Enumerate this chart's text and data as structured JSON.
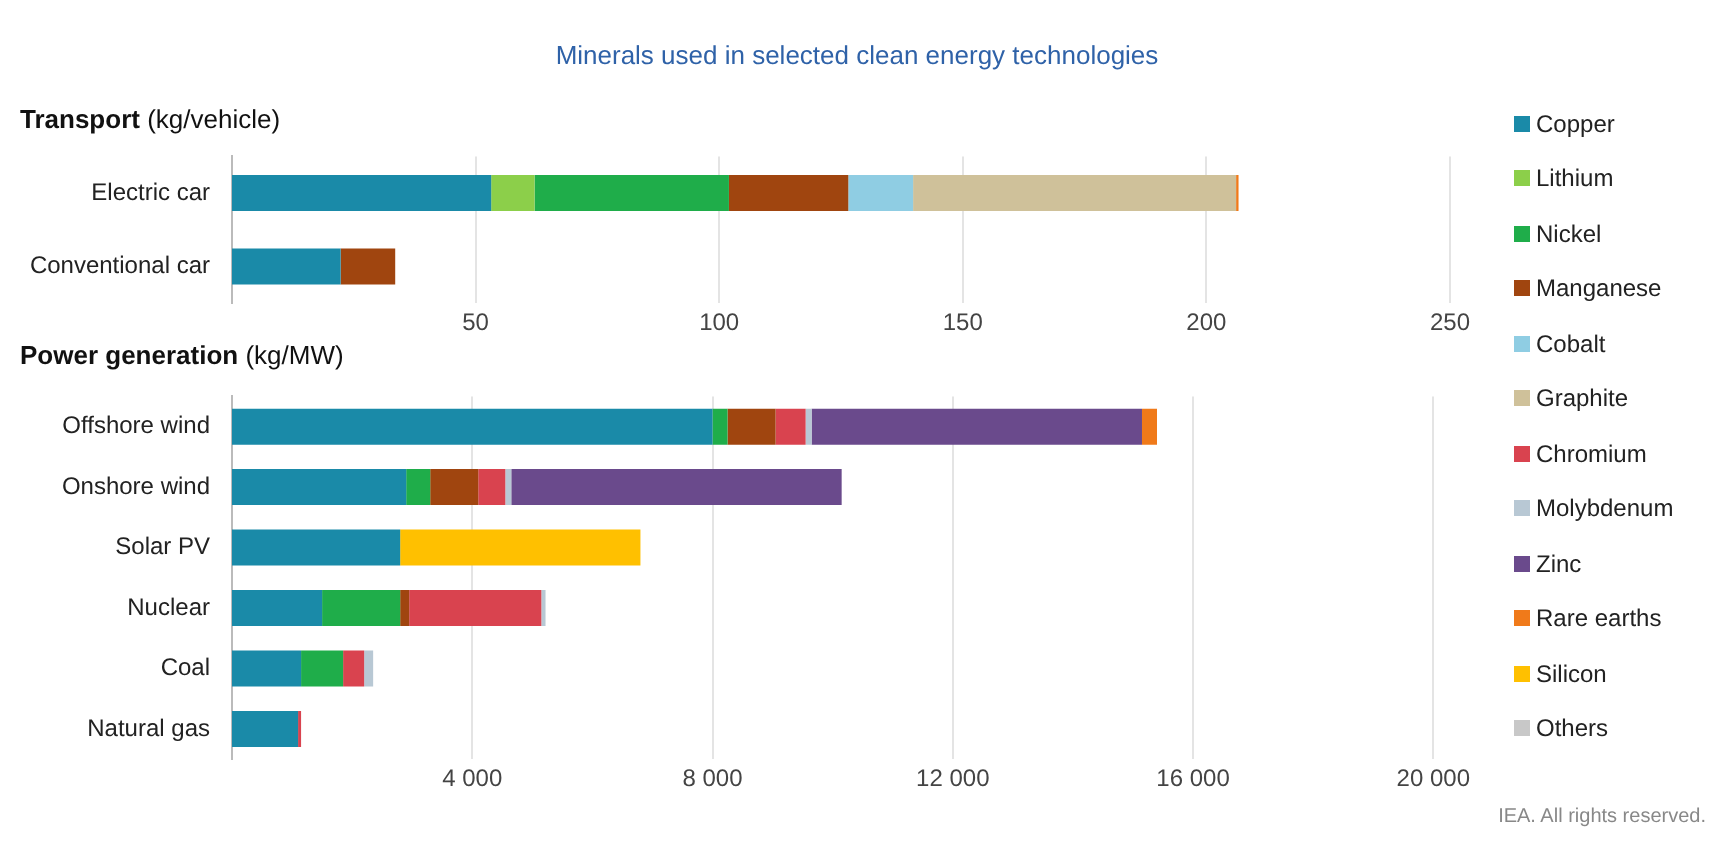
{
  "chart_data": [
    {
      "type": "bar",
      "title": "Minerals used in selected clean energy technologies",
      "subtitle": "Transport (kg/vehicle)",
      "orientation": "horizontal",
      "stacked": true,
      "grid": "x",
      "categories": [
        "Electric car",
        "Conventional car"
      ],
      "xlim": [
        0,
        250
      ],
      "xticks": [
        50,
        100,
        150,
        200,
        250
      ],
      "series": [
        {
          "color": "#1a8aa8",
          "values": [
            53.2,
            22.3
          ]
        },
        {
          "color": "#8ccf4a",
          "values": [
            8.9,
            null
          ]
        },
        {
          "color": "#1fad4a",
          "values": [
            39.9,
            null
          ]
        },
        {
          "color": "#a0450f",
          "values": [
            24.5,
            11.2
          ]
        },
        {
          "color": "#8fcde3",
          "values": [
            13.3,
            null
          ]
        },
        {
          "color": "#cfc19a",
          "values": [
            66.3,
            null
          ]
        },
        {
          "color": "#f07a1a",
          "values": [
            0.5,
            null
          ]
        }
      ]
    },
    {
      "type": "bar",
      "subtitle": "Power generation (kg/MW)",
      "orientation": "horizontal",
      "stacked": true,
      "grid": "x",
      "legend": "right",
      "categories": [
        "Offshore wind",
        "Onshore wind",
        "Solar PV",
        "Nuclear",
        "Coal",
        "Natural gas"
      ],
      "xlim": [
        0,
        20000
      ],
      "xticks": [
        {
          "value": 4000,
          "label": "4 000"
        },
        {
          "value": 8000,
          "label": "8 000"
        },
        {
          "value": 12000,
          "label": "12 000"
        },
        {
          "value": 16000,
          "label": "16 000"
        },
        {
          "value": 20000,
          "label": "20 000"
        }
      ],
      "annotations": [
        "IEA. All rights reserved."
      ],
      "series": [
        {
          "name": "Copper",
          "color": "#1a8aa8",
          "values": [
            8000,
            2900,
            2800,
            1500,
            1150,
            1100
          ]
        },
        {
          "name": "Lithium",
          "color": "#8ccf4a",
          "values": [
            null,
            null,
            null,
            null,
            null,
            null
          ]
        },
        {
          "name": "Nickel",
          "color": "#1fad4a",
          "values": [
            250,
            400,
            null,
            1300,
            700,
            null
          ]
        },
        {
          "name": "Manganese",
          "color": "#a0450f",
          "values": [
            800,
            800,
            null,
            150,
            null,
            null
          ]
        },
        {
          "name": "Cobalt",
          "color": "#8fcde3",
          "values": [
            null,
            null,
            null,
            null,
            null,
            null
          ]
        },
        {
          "name": "Graphite",
          "color": "#cfc19a",
          "values": [
            null,
            null,
            null,
            null,
            null,
            null
          ]
        },
        {
          "name": "Chromium",
          "color": "#d9434f",
          "values": [
            500,
            450,
            null,
            2200,
            350,
            50
          ]
        },
        {
          "name": "Molybdenum",
          "color": "#b8c8d4",
          "values": [
            100,
            100,
            null,
            70,
            150,
            null
          ]
        },
        {
          "name": "Zinc",
          "color": "#6a4a8c",
          "values": [
            5500,
            5500,
            null,
            null,
            null,
            null
          ]
        },
        {
          "name": "Rare earths",
          "color": "#f07a1a",
          "values": [
            250,
            null,
            null,
            null,
            null,
            null
          ]
        },
        {
          "name": "Silicon",
          "color": "#ffc000",
          "values": [
            null,
            null,
            4000,
            null,
            null,
            null
          ]
        },
        {
          "name": "Others",
          "color": "#c8c8c8",
          "values": [
            null,
            null,
            null,
            null,
            null,
            null
          ]
        }
      ]
    }
  ]
}
